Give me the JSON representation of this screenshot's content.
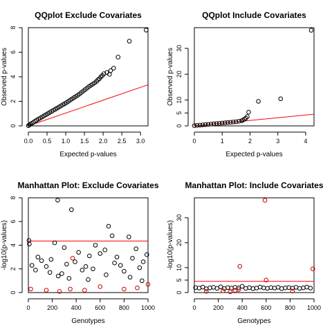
{
  "chart_data": [
    {
      "type": "scatter",
      "title": "QQplot Exclude Covariates",
      "xlabel": "Expected p-values",
      "ylabel": "Observed p-values",
      "xlim": [
        0,
        3.2
      ],
      "ylim": [
        0,
        8
      ],
      "xticks": [
        0,
        0.5,
        1,
        1.5,
        2,
        2.5,
        3
      ],
      "xtick_labels": [
        "0.0",
        "0.5",
        "1.0",
        "1.5",
        "2.0",
        "2.5",
        "3.0"
      ],
      "yticks": [
        0,
        2,
        4,
        6,
        8
      ],
      "ytick_labels": [
        "0",
        "2",
        "4",
        "6",
        "8"
      ],
      "grid": false,
      "reference_line": {
        "color": "#ff0000",
        "from": [
          0,
          0
        ],
        "to": [
          3.2,
          3.35
        ]
      },
      "series": [
        {
          "color": "#000000",
          "marker": "open-circle",
          "x": [
            0.0,
            0.03,
            0.06,
            0.1,
            0.14,
            0.18,
            0.22,
            0.27,
            0.32,
            0.37,
            0.42,
            0.47,
            0.52,
            0.57,
            0.62,
            0.67,
            0.72,
            0.77,
            0.82,
            0.87,
            0.92,
            0.97,
            1.02,
            1.07,
            1.12,
            1.17,
            1.22,
            1.27,
            1.32,
            1.37,
            1.42,
            1.47,
            1.52,
            1.57,
            1.62,
            1.67,
            1.72,
            1.77,
            1.82,
            1.86,
            1.9,
            1.94,
            1.98,
            2.02,
            2.1,
            2.17,
            2.2,
            2.28,
            2.4,
            2.7,
            3.15
          ],
          "y": [
            0.02,
            0.08,
            0.15,
            0.22,
            0.3,
            0.38,
            0.46,
            0.55,
            0.64,
            0.73,
            0.82,
            0.91,
            1.0,
            1.09,
            1.18,
            1.27,
            1.36,
            1.45,
            1.54,
            1.63,
            1.72,
            1.81,
            1.9,
            2.0,
            2.1,
            2.2,
            2.3,
            2.4,
            2.5,
            2.6,
            2.72,
            2.84,
            2.96,
            3.08,
            3.2,
            3.3,
            3.4,
            3.5,
            3.62,
            3.75,
            3.85,
            4.0,
            4.1,
            4.25,
            4.35,
            4.2,
            4.5,
            4.7,
            5.6,
            6.9,
            7.8
          ]
        }
      ]
    },
    {
      "type": "scatter",
      "title": "QQplot Include Covariates",
      "xlabel": "Expected p-values",
      "ylabel": "Observed p-values",
      "xlim": [
        0,
        4.3
      ],
      "ylim": [
        0,
        38
      ],
      "xticks": [
        0,
        1,
        2,
        3,
        4
      ],
      "xtick_labels": [
        "0",
        "1",
        "2",
        "3",
        "4"
      ],
      "yticks": [
        0,
        5,
        10,
        20,
        30
      ],
      "ytick_labels": [
        "0",
        "5",
        "10",
        "20",
        "30"
      ],
      "grid": false,
      "reference_line": {
        "color": "#ff0000",
        "from": [
          0,
          0
        ],
        "to": [
          4.3,
          4.5
        ]
      },
      "series": [
        {
          "color": "#000000",
          "marker": "open-circle",
          "x": [
            0.0,
            0.1,
            0.2,
            0.3,
            0.4,
            0.5,
            0.6,
            0.7,
            0.8,
            0.9,
            1.0,
            1.1,
            1.2,
            1.3,
            1.4,
            1.5,
            1.6,
            1.7,
            1.75,
            1.8,
            1.85,
            1.9,
            1.95,
            2.3,
            3.1,
            4.2
          ],
          "y": [
            0.1,
            0.2,
            0.3,
            0.4,
            0.5,
            0.6,
            0.7,
            0.8,
            0.9,
            1.0,
            1.1,
            1.2,
            1.3,
            1.4,
            1.5,
            1.6,
            1.8,
            2.0,
            2.3,
            2.6,
            3.0,
            3.6,
            5.3,
            9.5,
            10.5,
            37.0
          ]
        }
      ]
    },
    {
      "type": "scatter",
      "title": "Manhattan Plot: Exclude Covariates",
      "xlabel": "Genotypes",
      "ylabel": "-log10(p-values)",
      "xlim": [
        0,
        1000
      ],
      "ylim": [
        0,
        8
      ],
      "xticks": [
        0,
        200,
        400,
        600,
        800,
        1000
      ],
      "xtick_labels": [
        "0",
        "200",
        "400",
        "600",
        "800",
        "1000"
      ],
      "yticks": [
        0,
        2,
        4,
        6,
        8
      ],
      "ytick_labels": [
        "0",
        "2",
        "4",
        "6",
        "8"
      ],
      "grid": false,
      "threshold_line": {
        "color": "#ff0000",
        "y": 4.35
      },
      "series": [
        {
          "color": "#000000",
          "marker": "open-circle",
          "x": [
            5,
            8,
            30,
            60,
            80,
            110,
            150,
            190,
            220,
            245,
            280,
            300,
            320,
            360,
            390,
            420,
            450,
            480,
            510,
            540,
            560,
            600,
            640,
            670,
            700,
            720,
            740,
            770,
            800,
            840,
            870,
            900,
            930,
            960,
            990,
            250,
            340,
            180,
            500,
            650,
            850,
            950
          ],
          "y": [
            4.4,
            4.1,
            2.3,
            1.9,
            3.0,
            2.7,
            2.2,
            2.8,
            4.2,
            7.8,
            1.6,
            3.8,
            2.4,
            7.0,
            2.6,
            3.4,
            1.9,
            2.2,
            3.1,
            2.0,
            4.0,
            3.3,
            3.6,
            5.6,
            4.8,
            2.5,
            3.0,
            2.3,
            1.8,
            4.7,
            2.9,
            3.7,
            2.1,
            2.6,
            3.2,
            1.4,
            1.2,
            1.7,
            1.1,
            1.5,
            1.3,
            1.0
          ]
        },
        {
          "color": "#cc0000",
          "marker": "open-circle",
          "x": [
            20,
            150,
            260,
            350,
            370,
            470,
            600,
            800,
            910,
            1000
          ],
          "y": [
            0.3,
            0.2,
            0.1,
            0.3,
            2.9,
            0.2,
            0.5,
            0.3,
            0.4,
            0.7
          ]
        }
      ]
    },
    {
      "type": "scatter",
      "title": "Manhattan Plot: Include Covariates",
      "xlabel": "Genotypes",
      "ylabel": "-log10(p-values)",
      "xlim": [
        0,
        1000
      ],
      "ylim": [
        0,
        38
      ],
      "xticks": [
        0,
        200,
        400,
        600,
        800,
        1000
      ],
      "xtick_labels": [
        "0",
        "200",
        "400",
        "600",
        "800",
        "1000"
      ],
      "yticks": [
        0,
        5,
        10,
        20,
        30
      ],
      "ytick_labels": [
        "0",
        "5",
        "10",
        "20",
        "30"
      ],
      "grid": false,
      "threshold_line": {
        "color": "#ff0000",
        "y": 4.5
      },
      "series": [
        {
          "color": "#000000",
          "marker": "open-circle",
          "x": [
            10,
            40,
            70,
            100,
            130,
            160,
            190,
            220,
            250,
            280,
            310,
            340,
            370,
            400,
            430,
            460,
            490,
            520,
            550,
            580,
            610,
            640,
            670,
            700,
            730,
            760,
            790,
            820,
            850,
            880,
            910,
            940,
            970
          ],
          "y": [
            2.0,
            1.8,
            2.2,
            1.5,
            1.9,
            2.1,
            1.7,
            2.3,
            1.6,
            2.0,
            1.8,
            2.1,
            1.9,
            2.5,
            1.7,
            2.0,
            1.6,
            1.8,
            2.2,
            1.9,
            1.7,
            2.0,
            1.8,
            2.1,
            1.6,
            1.9,
            2.0,
            1.8,
            2.1,
            1.7,
            1.9,
            2.2,
            1.8
          ]
        },
        {
          "color": "#cc0000",
          "marker": "open-circle",
          "x": [
            100,
            240,
            300,
            340,
            370,
            380,
            590,
            600,
            820,
            990
          ],
          "y": [
            0.5,
            0.7,
            0.3,
            0.9,
            1.2,
            10.5,
            37.0,
            5.0,
            0.6,
            9.5
          ]
        }
      ]
    }
  ]
}
